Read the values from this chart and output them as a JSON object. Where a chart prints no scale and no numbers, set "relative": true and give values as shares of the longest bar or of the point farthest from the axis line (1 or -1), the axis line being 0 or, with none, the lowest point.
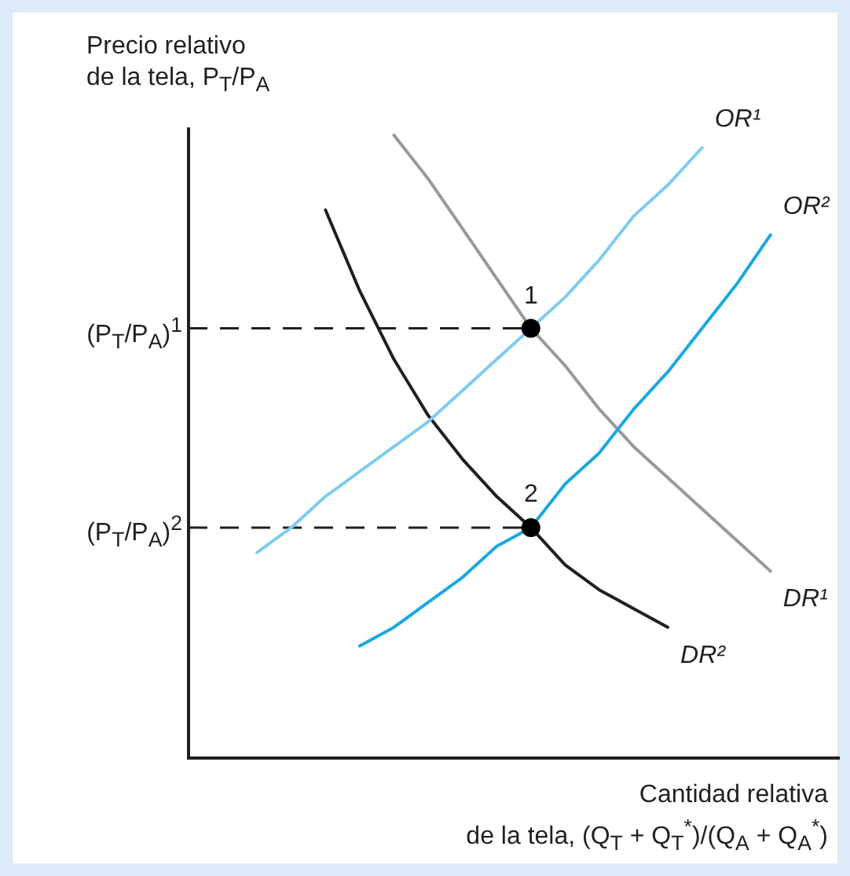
{
  "chart_data": {
    "type": "line",
    "relative": true,
    "ylabel": "Precio relativo\nde la tela, P$_{T}$/P$_{A}$",
    "xlabel": "Cantidad relativa\nde la tela, (Q$_{T}$ + Q$_{T}$$^{*}$)/(Q$_{A}$ + Q$_{A}$$^{*}$)",
    "marker": "none",
    "line_style": "solid",
    "legend": false,
    "grid": false,
    "categories": [
      null,
      null,
      null,
      null,
      null,
      null,
      null,
      null,
      null,
      null,
      null,
      null,
      null,
      null,
      null,
      null,
      null,
      null,
      null,
      null
    ],
    "series": [
      {
        "name": "OR¹",
        "color": "#7fcbef",
        "values": [
          null,
          null,
          0.33,
          0.37,
          0.42,
          0.46,
          0.5,
          0.54,
          0.59,
          0.64,
          0.69,
          0.74,
          0.8,
          0.87,
          0.92,
          0.98,
          null,
          null,
          null,
          null
        ]
      },
      {
        "name": "OR²",
        "color": "#1ba8e0",
        "values": [
          null,
          null,
          null,
          null,
          null,
          0.18,
          0.21,
          0.25,
          0.29,
          0.34,
          0.37,
          0.44,
          0.49,
          0.56,
          0.62,
          0.69,
          0.76,
          0.84,
          null,
          null
        ]
      },
      {
        "name": "DR¹",
        "color": "#999999",
        "values": [
          null,
          null,
          null,
          null,
          null,
          null,
          1.0,
          0.93,
          0.85,
          0.77,
          0.69,
          0.63,
          0.56,
          0.5,
          0.45,
          0.4,
          0.35,
          0.3,
          null,
          null
        ]
      },
      {
        "name": "DR²",
        "color": "#231f20",
        "values": [
          null,
          null,
          null,
          null,
          0.88,
          0.75,
          0.64,
          0.55,
          0.48,
          0.42,
          0.37,
          0.31,
          0.27,
          0.24,
          0.21,
          null,
          null,
          null,
          null,
          null
        ]
      },
      {
        "color": "#000000",
        "marker": "circle",
        "values": [
          null,
          null,
          null,
          null,
          null,
          null,
          null,
          null,
          null,
          null,
          0.69,
          null,
          null,
          null,
          null,
          null,
          null,
          null,
          null,
          null
        ]
      },
      {
        "color": "#000000",
        "marker": "circle",
        "values": [
          null,
          null,
          null,
          null,
          null,
          null,
          null,
          null,
          null,
          null,
          0.37,
          null,
          null,
          null,
          null,
          null,
          null,
          null,
          null,
          null
        ]
      }
    ],
    "ref_lines": [
      {
        "axis": "y",
        "value": 0.69,
        "label": "(P$_{T}$/P$_{A}$)$^{1}$",
        "line_style": "dashed",
        "color": "#231f20"
      },
      {
        "axis": "y",
        "value": 0.37,
        "label": "(P$_{T}$/P$_{A}$)$^{2}$",
        "line_style": "dashed",
        "color": "#231f20"
      }
    ],
    "annotations": [
      {
        "text": "1",
        "y": 0.69
      },
      {
        "text": "2",
        "y": 0.37
      }
    ]
  }
}
